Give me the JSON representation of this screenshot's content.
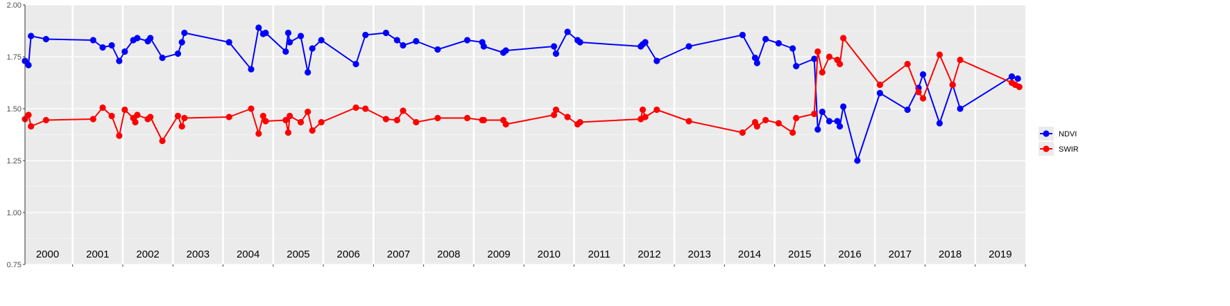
{
  "chart_data": {
    "type": "line",
    "ylim": [
      0.75,
      2.0
    ],
    "y_ticks": [
      "0.75",
      "1.00",
      "1.25",
      "1.50",
      "1.75",
      "2.00"
    ],
    "grid": true,
    "legend_position": "right",
    "year_labels": [
      "2000",
      "2001",
      "2002",
      "2003",
      "2004",
      "2005",
      "2006",
      "2007",
      "2008",
      "2009",
      "2010",
      "2011",
      "2012",
      "2013",
      "2014",
      "2015",
      "2016",
      "2017",
      "2018",
      "2019"
    ],
    "x_domain": [
      2000.0,
      2019.95
    ],
    "series": [
      {
        "name": "NDVI",
        "color": "#0000ff",
        "points": [
          [
            2000.0,
            1.73
          ],
          [
            2000.07,
            1.71
          ],
          [
            2000.12,
            1.85
          ],
          [
            2000.42,
            1.835
          ],
          [
            2001.36,
            1.83
          ],
          [
            2001.55,
            1.795
          ],
          [
            2001.73,
            1.805
          ],
          [
            2001.88,
            1.73
          ],
          [
            2001.99,
            1.775
          ],
          [
            2002.16,
            1.83
          ],
          [
            2002.24,
            1.84
          ],
          [
            2002.45,
            1.825
          ],
          [
            2002.5,
            1.84
          ],
          [
            2002.74,
            1.745
          ],
          [
            2003.05,
            1.765
          ],
          [
            2003.13,
            1.82
          ],
          [
            2003.18,
            1.865
          ],
          [
            2004.07,
            1.82
          ],
          [
            2004.51,
            1.69
          ],
          [
            2004.66,
            1.89
          ],
          [
            2004.75,
            1.86
          ],
          [
            2004.8,
            1.865
          ],
          [
            2005.2,
            1.775
          ],
          [
            2005.25,
            1.865
          ],
          [
            2005.28,
            1.82
          ],
          [
            2005.5,
            1.85
          ],
          [
            2005.64,
            1.675
          ],
          [
            2005.73,
            1.79
          ],
          [
            2005.91,
            1.83
          ],
          [
            2006.6,
            1.715
          ],
          [
            2006.79,
            1.855
          ],
          [
            2007.2,
            1.865
          ],
          [
            2007.42,
            1.83
          ],
          [
            2007.54,
            1.805
          ],
          [
            2007.8,
            1.825
          ],
          [
            2008.23,
            1.785
          ],
          [
            2008.82,
            1.83
          ],
          [
            2009.12,
            1.82
          ],
          [
            2009.15,
            1.8
          ],
          [
            2009.54,
            1.77
          ],
          [
            2009.59,
            1.78
          ],
          [
            2010.55,
            1.8
          ],
          [
            2010.59,
            1.765
          ],
          [
            2010.82,
            1.87
          ],
          [
            2011.02,
            1.83
          ],
          [
            2011.07,
            1.82
          ],
          [
            2012.28,
            1.8
          ],
          [
            2012.32,
            1.81
          ],
          [
            2012.37,
            1.82
          ],
          [
            2012.6,
            1.73
          ],
          [
            2013.24,
            1.8
          ],
          [
            2014.31,
            1.855
          ],
          [
            2014.56,
            1.745
          ],
          [
            2014.6,
            1.72
          ],
          [
            2014.77,
            1.835
          ],
          [
            2015.03,
            1.815
          ],
          [
            2015.31,
            1.79
          ],
          [
            2015.38,
            1.705
          ],
          [
            2015.74,
            1.74
          ],
          [
            2015.81,
            1.4
          ],
          [
            2015.9,
            1.485
          ],
          [
            2016.04,
            1.44
          ],
          [
            2016.2,
            1.44
          ],
          [
            2016.25,
            1.415
          ],
          [
            2016.32,
            1.51
          ],
          [
            2016.6,
            1.25
          ],
          [
            2017.05,
            1.575
          ],
          [
            2017.6,
            1.495
          ],
          [
            2017.82,
            1.6
          ],
          [
            2017.91,
            1.665
          ],
          [
            2018.24,
            1.43
          ],
          [
            2018.5,
            1.615
          ],
          [
            2018.65,
            1.5
          ],
          [
            2019.68,
            1.655
          ],
          [
            2019.8,
            1.645
          ]
        ]
      },
      {
        "name": "SWIR",
        "color": "#ff0000",
        "points": [
          [
            2000.0,
            1.45
          ],
          [
            2000.07,
            1.47
          ],
          [
            2000.12,
            1.415
          ],
          [
            2000.42,
            1.445
          ],
          [
            2001.36,
            1.45
          ],
          [
            2001.55,
            1.505
          ],
          [
            2001.73,
            1.465
          ],
          [
            2001.88,
            1.37
          ],
          [
            2001.99,
            1.495
          ],
          [
            2002.16,
            1.455
          ],
          [
            2002.2,
            1.435
          ],
          [
            2002.24,
            1.47
          ],
          [
            2002.45,
            1.45
          ],
          [
            2002.5,
            1.46
          ],
          [
            2002.74,
            1.345
          ],
          [
            2003.05,
            1.465
          ],
          [
            2003.13,
            1.415
          ],
          [
            2003.18,
            1.455
          ],
          [
            2004.07,
            1.46
          ],
          [
            2004.51,
            1.5
          ],
          [
            2004.66,
            1.38
          ],
          [
            2004.75,
            1.465
          ],
          [
            2004.8,
            1.44
          ],
          [
            2005.2,
            1.445
          ],
          [
            2005.25,
            1.385
          ],
          [
            2005.28,
            1.465
          ],
          [
            2005.5,
            1.435
          ],
          [
            2005.64,
            1.485
          ],
          [
            2005.73,
            1.395
          ],
          [
            2005.91,
            1.435
          ],
          [
            2006.6,
            1.505
          ],
          [
            2006.79,
            1.5
          ],
          [
            2007.2,
            1.45
          ],
          [
            2007.42,
            1.445
          ],
          [
            2007.54,
            1.49
          ],
          [
            2007.8,
            1.435
          ],
          [
            2008.23,
            1.455
          ],
          [
            2008.82,
            1.455
          ],
          [
            2009.12,
            1.445
          ],
          [
            2009.15,
            1.445
          ],
          [
            2009.54,
            1.445
          ],
          [
            2009.59,
            1.425
          ],
          [
            2010.55,
            1.47
          ],
          [
            2010.59,
            1.495
          ],
          [
            2010.82,
            1.46
          ],
          [
            2011.02,
            1.425
          ],
          [
            2011.07,
            1.435
          ],
          [
            2012.28,
            1.45
          ],
          [
            2012.32,
            1.495
          ],
          [
            2012.37,
            1.46
          ],
          [
            2012.6,
            1.495
          ],
          [
            2013.24,
            1.44
          ],
          [
            2014.31,
            1.385
          ],
          [
            2014.56,
            1.435
          ],
          [
            2014.6,
            1.415
          ],
          [
            2014.77,
            1.445
          ],
          [
            2015.03,
            1.43
          ],
          [
            2015.31,
            1.385
          ],
          [
            2015.38,
            1.455
          ],
          [
            2015.74,
            1.475
          ],
          [
            2015.81,
            1.775
          ],
          [
            2015.9,
            1.675
          ],
          [
            2016.04,
            1.75
          ],
          [
            2016.2,
            1.735
          ],
          [
            2016.25,
            1.715
          ],
          [
            2016.32,
            1.84
          ],
          [
            2017.05,
            1.615
          ],
          [
            2017.6,
            1.715
          ],
          [
            2017.82,
            1.58
          ],
          [
            2017.91,
            1.55
          ],
          [
            2018.24,
            1.76
          ],
          [
            2018.5,
            1.615
          ],
          [
            2018.65,
            1.735
          ],
          [
            2019.68,
            1.625
          ],
          [
            2019.75,
            1.615
          ],
          [
            2019.83,
            1.605
          ]
        ]
      }
    ]
  }
}
